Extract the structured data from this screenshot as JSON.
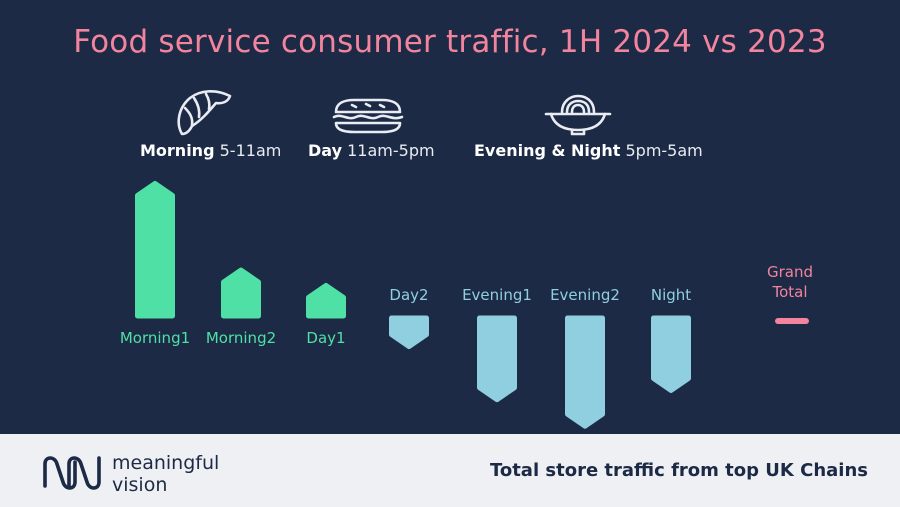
{
  "title": "Food service consumer traffic, 1H 2024 vs 2023",
  "dayparts": [
    {
      "name": "Morning",
      "hours": "5-11am",
      "icon": "croissant-icon"
    },
    {
      "name": "Day",
      "hours": "11am-5pm",
      "icon": "sandwich-icon"
    },
    {
      "name": "Evening & Night",
      "hours": "5pm-5am",
      "icon": "noodle-bowl-icon"
    }
  ],
  "colors": {
    "background": "#1c2a45",
    "positive": "#4fe0a6",
    "negative": "#8fcfe0",
    "total": "#f2849e",
    "title": "#f2849e"
  },
  "chart_data": {
    "type": "bar",
    "categories": [
      "Morning1",
      "Morning2",
      "Day1",
      "Day2",
      "Evening1",
      "Evening2",
      "Night",
      "Grand Total"
    ],
    "values": [
      13,
      4.5,
      3,
      -3,
      -8.2,
      -10.8,
      -7.3,
      0
    ],
    "category_label_lines": {
      "Grand Total": [
        "Grand",
        "Total"
      ]
    },
    "title": "",
    "xlabel": "",
    "ylabel": "",
    "grid": false,
    "legend": "none"
  },
  "footer": {
    "brand_line1": "meaningful",
    "brand_line2": "vision",
    "note": "Total store traffic from top UK Chains"
  }
}
